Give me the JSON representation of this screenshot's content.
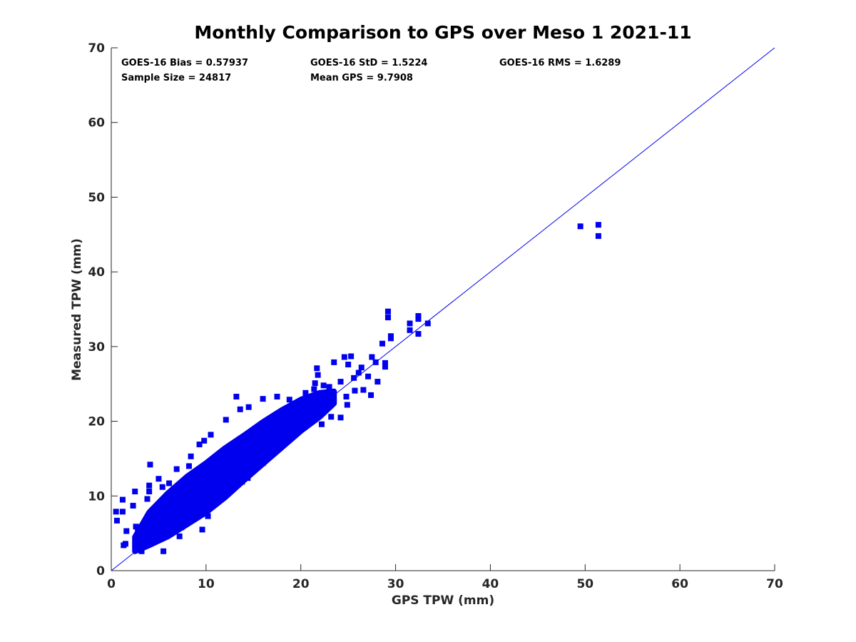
{
  "chart_data": {
    "type": "scatter",
    "title": "Monthly Comparison to GPS over Meso 1 2021-11",
    "xlabel": "GPS TPW (mm)",
    "ylabel": "Measured TPW (mm)",
    "xlim": [
      0,
      70
    ],
    "ylim": [
      0,
      70
    ],
    "xticks": [
      "0",
      "10",
      "20",
      "30",
      "40",
      "50",
      "60",
      "70"
    ],
    "yticks": [
      "0",
      "10",
      "20",
      "30",
      "40",
      "50",
      "60",
      "70"
    ],
    "grid": false,
    "stats": {
      "bias": "GOES-16 Bias = 0.57937",
      "std": "GOES-16 StD = 1.5224",
      "rms": "GOES-16 RMS = 1.6289",
      "sample_size": "Sample Size = 24817",
      "mean_gps": "Mean GPS = 9.7908"
    },
    "reference_line": {
      "name": "1:1 line",
      "x": [
        0,
        70
      ],
      "y": [
        0,
        70
      ]
    },
    "marker_color": "#0000ee",
    "line_color": "#0000ee",
    "series": [
      {
        "name": "GOES-16 vs GPS",
        "points": [
          [
            0.5,
            7.9
          ],
          [
            0.6,
            6.7
          ],
          [
            1.2,
            9.5
          ],
          [
            1.2,
            7.9
          ],
          [
            1.3,
            3.4
          ],
          [
            1.5,
            3.6
          ],
          [
            2.5,
            10.6
          ],
          [
            4.1,
            14.2
          ],
          [
            4.0,
            11.4
          ],
          [
            5.0,
            12.3
          ],
          [
            6.9,
            13.6
          ],
          [
            8.2,
            14.0
          ],
          [
            5.5,
            2.6
          ],
          [
            3.2,
            2.6
          ],
          [
            8.4,
            15.3
          ],
          [
            9.3,
            16.9
          ],
          [
            9.8,
            17.4
          ],
          [
            13.2,
            23.3
          ],
          [
            10.5,
            18.2
          ],
          [
            12.1,
            20.2
          ],
          [
            13.6,
            21.6
          ],
          [
            14.5,
            21.9
          ],
          [
            16.0,
            23.0
          ],
          [
            17.5,
            23.3
          ],
          [
            18.8,
            22.9
          ],
          [
            20.5,
            23.8
          ],
          [
            21.4,
            24.3
          ],
          [
            21.8,
            26.2
          ],
          [
            21.5,
            25.1
          ],
          [
            21.7,
            27.1
          ],
          [
            22.4,
            24.8
          ],
          [
            23.0,
            24.6
          ],
          [
            23.5,
            27.9
          ],
          [
            24.2,
            25.3
          ],
          [
            24.6,
            28.6
          ],
          [
            25.0,
            27.6
          ],
          [
            25.3,
            28.7
          ],
          [
            25.6,
            25.8
          ],
          [
            26.1,
            26.5
          ],
          [
            26.4,
            27.2
          ],
          [
            26.6,
            24.2
          ],
          [
            27.1,
            26.0
          ],
          [
            27.5,
            28.6
          ],
          [
            27.4,
            23.5
          ],
          [
            27.9,
            27.9
          ],
          [
            28.1,
            25.3
          ],
          [
            28.6,
            30.4
          ],
          [
            28.9,
            27.8
          ],
          [
            28.9,
            27.3
          ],
          [
            29.2,
            34.7
          ],
          [
            29.2,
            33.9
          ],
          [
            29.5,
            31.4
          ],
          [
            29.5,
            31.1
          ],
          [
            31.5,
            33.1
          ],
          [
            31.5,
            32.2
          ],
          [
            32.4,
            34.1
          ],
          [
            32.4,
            33.7
          ],
          [
            32.4,
            31.7
          ],
          [
            33.4,
            33.1
          ],
          [
            24.2,
            20.5
          ],
          [
            23.2,
            20.6
          ],
          [
            22.2,
            19.6
          ],
          [
            24.8,
            23.3
          ],
          [
            24.9,
            22.2
          ],
          [
            25.7,
            24.1
          ],
          [
            16.0,
            14.4
          ],
          [
            14.4,
            12.4
          ],
          [
            12.3,
            10.6
          ],
          [
            11.1,
            9.2
          ],
          [
            12.4,
            11.8
          ],
          [
            13.8,
            11.9
          ],
          [
            9.8,
            8.6
          ],
          [
            7.4,
            5.8
          ],
          [
            7.2,
            4.6
          ],
          [
            9.6,
            5.5
          ],
          [
            10.2,
            7.3
          ],
          [
            2.8,
            5.2
          ],
          [
            2.6,
            5.9
          ],
          [
            1.6,
            5.3
          ],
          [
            2.3,
            8.7
          ],
          [
            3.8,
            9.6
          ],
          [
            4.0,
            10.6
          ],
          [
            5.4,
            11.2
          ],
          [
            6.1,
            11.7
          ],
          [
            49.5,
            46.1
          ],
          [
            51.4,
            46.3
          ],
          [
            51.4,
            44.8
          ]
        ]
      }
    ],
    "dense_cloud": {
      "description": "band of ~24817 points clustered along the 1:1 line",
      "spine": [
        [
          2.5,
          3.5
        ],
        [
          4.0,
          5.6
        ],
        [
          6.0,
          7.5
        ],
        [
          8.0,
          9.4
        ],
        [
          10.0,
          11.1
        ],
        [
          12.0,
          13.1
        ],
        [
          14.0,
          15.1
        ],
        [
          16.0,
          17.1
        ],
        [
          18.0,
          19.0
        ],
        [
          20.0,
          20.8
        ],
        [
          22.0,
          22.2
        ],
        [
          23.5,
          23.2
        ]
      ],
      "half_width": [
        [
          2.5,
          1.0
        ],
        [
          4.0,
          2.2
        ],
        [
          6.0,
          2.9
        ],
        [
          8.0,
          3.2
        ],
        [
          10.0,
          3.3
        ],
        [
          12.0,
          3.3
        ],
        [
          14.0,
          3.0
        ],
        [
          16.0,
          2.8
        ],
        [
          18.0,
          2.5
        ],
        [
          20.0,
          2.1
        ],
        [
          22.0,
          1.6
        ],
        [
          23.5,
          0.8
        ]
      ],
      "clip_min_y": 2.6
    }
  }
}
